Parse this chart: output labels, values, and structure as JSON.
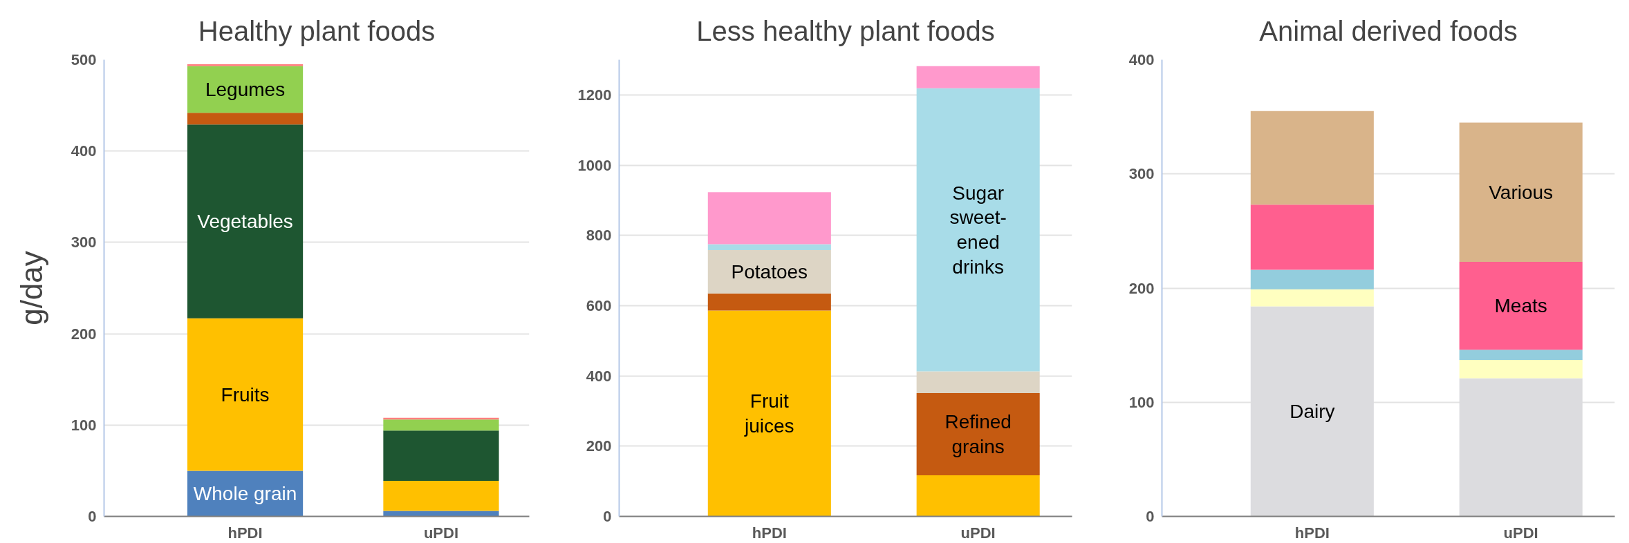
{
  "chart_data": [
    {
      "type": "bar",
      "stacked": true,
      "title": "Healthy plant foods",
      "ylabel": "g/day",
      "categories": [
        "hPDI",
        "uPDI"
      ],
      "ylim": [
        0,
        500
      ],
      "yticks": [
        0,
        100,
        200,
        300,
        400,
        500
      ],
      "grid": "y",
      "series": [
        {
          "name": "Whole grain",
          "color": "#4f81bd",
          "values": [
            50,
            6
          ]
        },
        {
          "name": "Fruits",
          "color": "#ffc000",
          "values": [
            167,
            33
          ]
        },
        {
          "name": "Vegetables",
          "color": "#1e5631",
          "values": [
            212,
            55
          ]
        },
        {
          "color": "#c55a11",
          "values": [
            13,
            null
          ]
        },
        {
          "name": "Legumes",
          "color": "#92d050",
          "values": [
            51,
            12
          ]
        },
        {
          "color": "#ff7f7f",
          "values": [
            2,
            2
          ]
        }
      ]
    },
    {
      "type": "bar",
      "stacked": true,
      "title": "Less healthy plant foods",
      "categories": [
        "hPDI",
        "uPDI"
      ],
      "ylim": [
        0,
        1300
      ],
      "yticks": [
        0,
        200,
        400,
        600,
        800,
        1000,
        1200
      ],
      "grid": "y",
      "series": [
        {
          "name": "Fruit\njuices",
          "color": "#ffc000",
          "values": [
            586,
            117
          ]
        },
        {
          "name": "Refined\ngrains",
          "color": "#c55a11",
          "values": [
            49,
            234
          ]
        },
        {
          "name": "Potatoes",
          "color": "#ddd5c5",
          "values": [
            123,
            62
          ]
        },
        {
          "name": "Sugar\nsweet-\nened\ndrinks",
          "color": "#a8dce8",
          "values": [
            17,
            806
          ]
        },
        {
          "color": "#ff99cc",
          "values": [
            148,
            63
          ]
        }
      ]
    },
    {
      "type": "bar",
      "stacked": true,
      "title": "Animal derived foods",
      "categories": [
        "hPDI",
        "uPDI"
      ],
      "ylim": [
        0,
        400
      ],
      "yticks": [
        0,
        100,
        200,
        300,
        400
      ],
      "grid": "y",
      "series": [
        {
          "name": "Dairy",
          "color": "#dcdcdf",
          "values": [
            184,
            121
          ]
        },
        {
          "color": "#ffffc0",
          "values": [
            15,
            16
          ]
        },
        {
          "color": "#93cddd",
          "values": [
            17,
            9
          ]
        },
        {
          "name": "Meats",
          "color": "#ff5f8f",
          "values": [
            57,
            77
          ]
        },
        {
          "name": "Various",
          "color": "#d9b48a",
          "values": [
            82,
            122
          ]
        }
      ]
    }
  ]
}
